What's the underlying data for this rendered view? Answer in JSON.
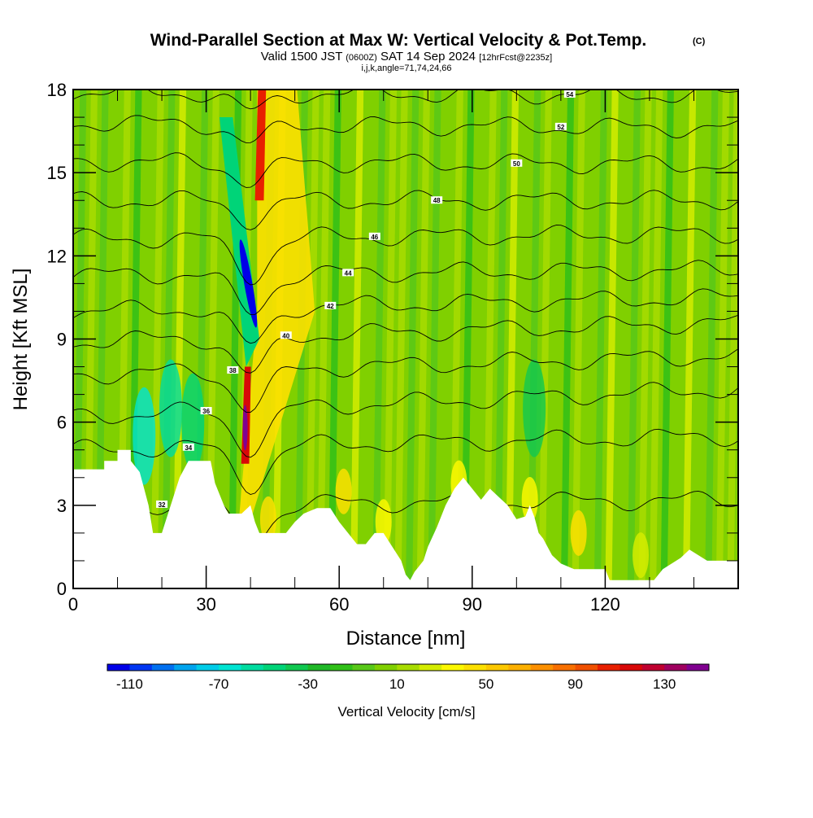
{
  "header": {
    "title": "Wind-Parallel Section at Max W: Vertical Velocity & Pot.Temp.",
    "title_mark": "(C)",
    "valid_prefix": "Valid 1500 JST",
    "valid_z": "(0600Z)",
    "valid_date": "SAT 14 Sep 2024",
    "forecast": "[12hrFcst@2235z]",
    "indices": "i,j,k,angle=71,74,24,66"
  },
  "chart_data": {
    "type": "heatmap",
    "xlabel": "Distance [nm]",
    "ylabel": "Height [Kft MSL]",
    "xlim": [
      0,
      150
    ],
    "ylim": [
      0,
      18
    ],
    "x_ticks": [
      0,
      30,
      60,
      90,
      120
    ],
    "y_ticks": [
      0,
      3,
      6,
      9,
      12,
      15,
      18
    ],
    "x_tick_labels": [
      "0",
      "30",
      "60",
      "90",
      "120"
    ],
    "y_tick_labels": [
      "0",
      "3",
      "6",
      "9",
      "12",
      "15",
      "18"
    ],
    "colorbar": {
      "label": "Vertical Velocity [cm/s]",
      "min": -120,
      "max": 150,
      "interval": 10,
      "tick_values": [
        -110,
        -70,
        -30,
        10,
        50,
        90,
        130
      ],
      "tick_labels": [
        "-110",
        "-70",
        "-30",
        "10",
        "50",
        "90",
        "130"
      ],
      "colors": [
        "#0000e8",
        "#0036f2",
        "#0070f0",
        "#00a4ee",
        "#00cce8",
        "#00e4d2",
        "#00dca0",
        "#00d478",
        "#10c850",
        "#20b828",
        "#30c018",
        "#58c818",
        "#80d000",
        "#a8dc00",
        "#d4ec00",
        "#fcf800",
        "#fce000",
        "#fcc800",
        "#fcb000",
        "#fc9000",
        "#f87000",
        "#f05000",
        "#e82000",
        "#d80808",
        "#c00030",
        "#a00060",
        "#800090"
      ]
    },
    "terrain_profile": [
      {
        "x": 0,
        "y": 4.3
      },
      {
        "x": 7,
        "y": 4.3
      },
      {
        "x": 7,
        "y": 4.6
      },
      {
        "x": 10,
        "y": 4.6
      },
      {
        "x": 10,
        "y": 5.0
      },
      {
        "x": 13,
        "y": 5.0
      },
      {
        "x": 13,
        "y": 4.6
      },
      {
        "x": 15,
        "y": 4.2
      },
      {
        "x": 16,
        "y": 3.6
      },
      {
        "x": 17,
        "y": 3.0
      },
      {
        "x": 18,
        "y": 2.0
      },
      {
        "x": 20,
        "y": 2.0
      },
      {
        "x": 21,
        "y": 2.5
      },
      {
        "x": 22,
        "y": 3.0
      },
      {
        "x": 24,
        "y": 4.0
      },
      {
        "x": 26,
        "y": 4.6
      },
      {
        "x": 31,
        "y": 4.6
      },
      {
        "x": 32,
        "y": 3.8
      },
      {
        "x": 34,
        "y": 3.0
      },
      {
        "x": 35,
        "y": 2.7
      },
      {
        "x": 38,
        "y": 2.7
      },
      {
        "x": 40,
        "y": 3.0
      },
      {
        "x": 41,
        "y": 2.4
      },
      {
        "x": 42,
        "y": 2.0
      },
      {
        "x": 48,
        "y": 2.0
      },
      {
        "x": 50,
        "y": 2.4
      },
      {
        "x": 52,
        "y": 2.7
      },
      {
        "x": 55,
        "y": 2.9
      },
      {
        "x": 58,
        "y": 2.9
      },
      {
        "x": 60,
        "y": 2.4
      },
      {
        "x": 62,
        "y": 2.0
      },
      {
        "x": 64,
        "y": 1.6
      },
      {
        "x": 66,
        "y": 1.6
      },
      {
        "x": 68,
        "y": 2.0
      },
      {
        "x": 70,
        "y": 2.0
      },
      {
        "x": 72,
        "y": 1.5
      },
      {
        "x": 74,
        "y": 1.0
      },
      {
        "x": 75,
        "y": 0.5
      },
      {
        "x": 76,
        "y": 0.3
      },
      {
        "x": 77,
        "y": 0.6
      },
      {
        "x": 79,
        "y": 1.0
      },
      {
        "x": 80,
        "y": 1.5
      },
      {
        "x": 82,
        "y": 2.2
      },
      {
        "x": 84,
        "y": 3.0
      },
      {
        "x": 86,
        "y": 3.6
      },
      {
        "x": 88,
        "y": 4.0
      },
      {
        "x": 90,
        "y": 3.6
      },
      {
        "x": 92,
        "y": 3.2
      },
      {
        "x": 94,
        "y": 3.6
      },
      {
        "x": 96,
        "y": 3.3
      },
      {
        "x": 98,
        "y": 3.0
      },
      {
        "x": 100,
        "y": 2.5
      },
      {
        "x": 102,
        "y": 2.6
      },
      {
        "x": 103,
        "y": 3.0
      },
      {
        "x": 104,
        "y": 2.6
      },
      {
        "x": 105,
        "y": 2.0
      },
      {
        "x": 106,
        "y": 1.8
      },
      {
        "x": 107,
        "y": 1.5
      },
      {
        "x": 108,
        "y": 1.2
      },
      {
        "x": 110,
        "y": 0.9
      },
      {
        "x": 113,
        "y": 0.7
      },
      {
        "x": 120,
        "y": 0.7
      },
      {
        "x": 121,
        "y": 0.3
      },
      {
        "x": 131,
        "y": 0.3
      },
      {
        "x": 133,
        "y": 0.7
      },
      {
        "x": 137,
        "y": 1.1
      },
      {
        "x": 139,
        "y": 1.4
      },
      {
        "x": 143,
        "y": 1.0
      },
      {
        "x": 150,
        "y": 1.0
      }
    ],
    "updraft_core": {
      "x": 38.5,
      "y_bottom": 2.7,
      "y_top": 18,
      "max_w": 150
    },
    "downdraft_core": {
      "x": 40,
      "y_center": 11,
      "min_w": -120
    },
    "theta_contours": [
      {
        "value": 32,
        "y_left": 3.0,
        "y_right": 3.2,
        "label": "32"
      },
      {
        "value": 34,
        "y_left": 5.0,
        "y_right": 5.5,
        "label": "34"
      },
      {
        "value": 36,
        "y_left": 6.2,
        "y_right": 7.2,
        "label": "36"
      },
      {
        "value": 38,
        "y_left": 7.7,
        "y_right": 8.4,
        "label": "38"
      },
      {
        "value": 40,
        "y_left": 8.9,
        "y_right": 9.6,
        "label": "40"
      },
      {
        "value": 42,
        "y_left": 10.0,
        "y_right": 10.5,
        "label": "42"
      },
      {
        "value": 44,
        "y_left": 11.3,
        "y_right": 11.5,
        "label": "44"
      },
      {
        "value": 46,
        "y_left": 12.6,
        "y_right": 12.8,
        "label": "46"
      },
      {
        "value": 48,
        "y_left": 14.0,
        "y_right": 14.0,
        "label": "48"
      },
      {
        "value": 50,
        "y_left": 15.4,
        "y_right": 15.3,
        "label": "50"
      },
      {
        "value": 52,
        "y_left": 16.8,
        "y_right": 16.6,
        "label": "52"
      },
      {
        "value": 54,
        "y_left": 17.9,
        "y_right": 17.8,
        "label": "54"
      }
    ]
  }
}
